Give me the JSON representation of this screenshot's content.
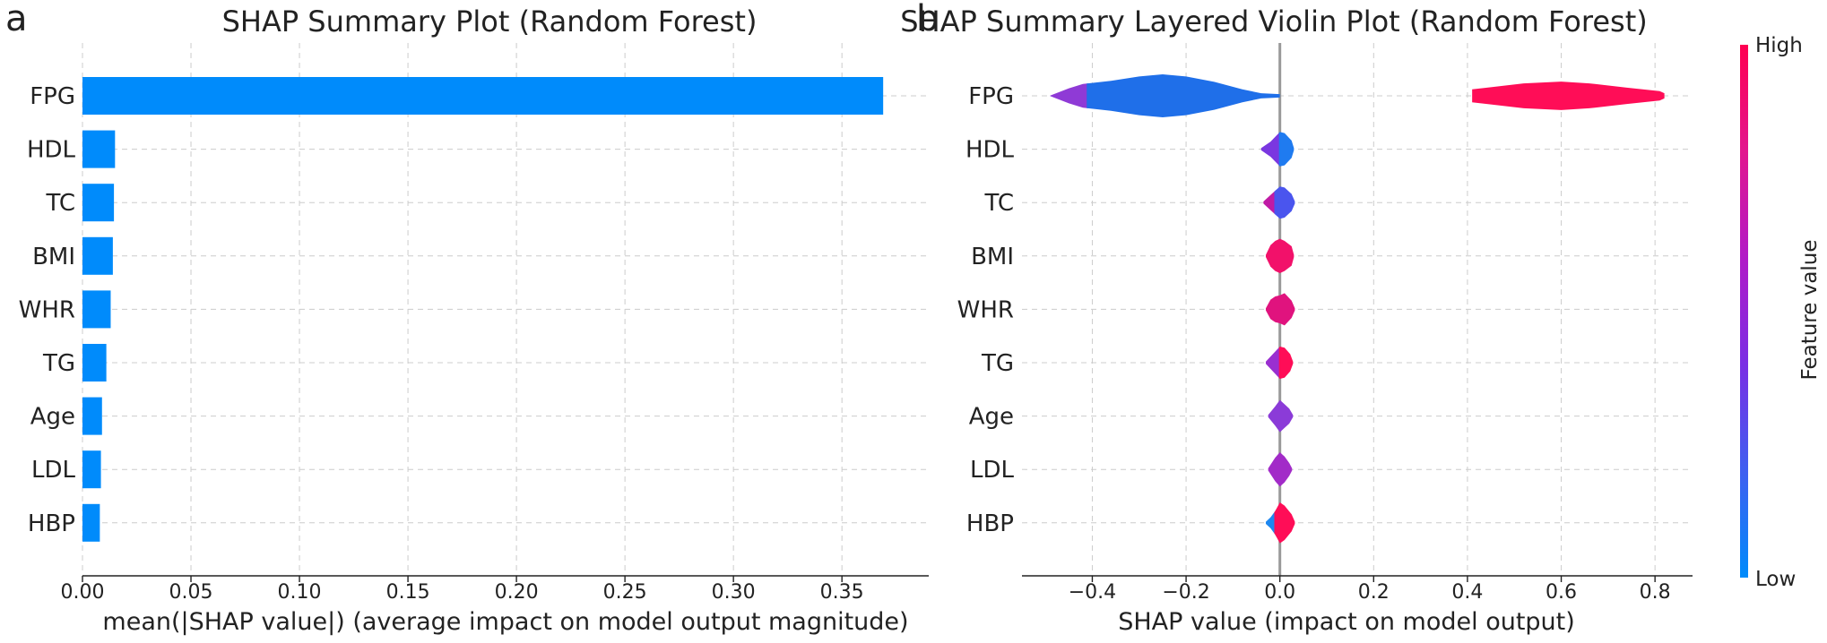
{
  "figure": {
    "panels": [
      {
        "letter": "a",
        "title": "SHAP Summary Plot (Random Forest)"
      },
      {
        "letter": "b",
        "title": "SHAP Summary Layered Violin Plot (Random Forest)"
      }
    ]
  },
  "chart_data": [
    {
      "type": "bar",
      "orientation": "horizontal",
      "panel": "a",
      "title": "SHAP Summary Plot (Random Forest)",
      "categories": [
        "FPG",
        "HDL",
        "TC",
        "BMI",
        "WHR",
        "TG",
        "Age",
        "LDL",
        "HBP"
      ],
      "values": [
        0.369,
        0.015,
        0.0145,
        0.014,
        0.013,
        0.011,
        0.009,
        0.0085,
        0.008
      ],
      "xlabel": "mean(|SHAP value|) (average impact on model output magnitude)",
      "ylabel": "",
      "xlim": [
        0,
        0.39
      ],
      "xticks": [
        0,
        0.05,
        0.1,
        0.15,
        0.2,
        0.25,
        0.3,
        0.35
      ],
      "xtick_labels": [
        "0.00",
        "0.05",
        "0.10",
        "0.15",
        "0.20",
        "0.25",
        "0.30",
        "0.35"
      ],
      "bar_color": "#008bfb",
      "grid": true
    },
    {
      "type": "violin",
      "panel": "b",
      "title": "SHAP Summary Layered Violin Plot (Random Forest)",
      "categories": [
        "FPG",
        "HDL",
        "TC",
        "BMI",
        "WHR",
        "TG",
        "Age",
        "LDL",
        "HBP"
      ],
      "xlabel": "SHAP value (impact on model output)",
      "xlim": [
        -0.55,
        0.88
      ],
      "xticks": [
        -0.4,
        -0.2,
        0,
        0.2,
        0.4,
        0.6,
        0.8
      ],
      "xtick_labels": [
        "−0.4",
        "−0.2",
        "0.0",
        "0.2",
        "0.4",
        "0.6",
        "0.8"
      ],
      "zero_line": 0,
      "violins": [
        {
          "feature": "FPG",
          "shape": [
            [
              -0.49,
              0.01
            ],
            [
              -0.45,
              0.35
            ],
            [
              -0.42,
              0.55
            ],
            [
              -0.36,
              0.7
            ],
            [
              -0.3,
              0.9
            ],
            [
              -0.25,
              1.0
            ],
            [
              -0.2,
              0.9
            ],
            [
              -0.14,
              0.65
            ],
            [
              -0.08,
              0.3
            ],
            [
              -0.04,
              0.12
            ],
            [
              0.0,
              0.08
            ]
          ],
          "segments": [
            {
              "from": -0.49,
              "to": -0.41,
              "color": "#8f3ad6"
            },
            {
              "from": -0.41,
              "to": 0.0,
              "color": "#1f6fe9"
            }
          ]
        },
        {
          "feature": "FPG",
          "shape": [
            [
              0.41,
              0.3
            ],
            [
              0.45,
              0.4
            ],
            [
              0.52,
              0.58
            ],
            [
              0.6,
              0.66
            ],
            [
              0.66,
              0.58
            ],
            [
              0.74,
              0.38
            ],
            [
              0.81,
              0.22
            ],
            [
              0.82,
              0.12
            ]
          ],
          "segments": [
            {
              "from": 0.41,
              "to": 0.82,
              "color": "#ff0d57"
            }
          ]
        },
        {
          "feature": "HDL",
          "shape": [
            [
              -0.04,
              0.05
            ],
            [
              -0.02,
              0.35
            ],
            [
              0.0,
              0.8
            ],
            [
              0.01,
              0.75
            ],
            [
              0.025,
              0.4
            ],
            [
              0.03,
              0.05
            ]
          ],
          "segments": [
            {
              "from": -0.04,
              "to": 0.0,
              "color": "#7a37e0"
            },
            {
              "from": 0.0,
              "to": 0.03,
              "color": "#1f7bf0"
            }
          ]
        },
        {
          "feature": "TC",
          "shape": [
            [
              -0.035,
              0.05
            ],
            [
              -0.02,
              0.35
            ],
            [
              0.0,
              0.75
            ],
            [
              0.01,
              0.7
            ],
            [
              0.025,
              0.4
            ],
            [
              0.032,
              0.05
            ]
          ],
          "segments": [
            {
              "from": -0.035,
              "to": -0.01,
              "color": "#c01aa5"
            },
            {
              "from": -0.01,
              "to": 0.032,
              "color": "#4a55ee"
            }
          ]
        },
        {
          "feature": "BMI",
          "shape": [
            [
              -0.03,
              0.05
            ],
            [
              -0.02,
              0.5
            ],
            [
              -0.01,
              0.7
            ],
            [
              0.0,
              0.8
            ],
            [
              0.01,
              0.7
            ],
            [
              0.025,
              0.45
            ],
            [
              0.03,
              0.05
            ]
          ],
          "segments": [
            {
              "from": -0.03,
              "to": 0.03,
              "color": "#f2116a"
            }
          ]
        },
        {
          "feature": "WHR",
          "shape": [
            [
              -0.03,
              0.05
            ],
            [
              -0.02,
              0.45
            ],
            [
              -0.01,
              0.6
            ],
            [
              0.0,
              0.65
            ],
            [
              0.01,
              0.75
            ],
            [
              0.025,
              0.4
            ],
            [
              0.032,
              0.05
            ]
          ],
          "segments": [
            {
              "from": -0.03,
              "to": 0.032,
              "color": "#e0137e"
            }
          ]
        },
        {
          "feature": "TG",
          "shape": [
            [
              -0.03,
              0.05
            ],
            [
              -0.015,
              0.4
            ],
            [
              0.0,
              0.75
            ],
            [
              0.01,
              0.7
            ],
            [
              0.022,
              0.4
            ],
            [
              0.028,
              0.05
            ]
          ],
          "segments": [
            {
              "from": -0.03,
              "to": 0.0,
              "color": "#9a2fd0"
            },
            {
              "from": 0.0,
              "to": 0.028,
              "color": "#ff0d57"
            }
          ]
        },
        {
          "feature": "Age",
          "shape": [
            [
              -0.025,
              0.05
            ],
            [
              -0.01,
              0.45
            ],
            [
              0.0,
              0.75
            ],
            [
              0.01,
              0.55
            ],
            [
              0.02,
              0.35
            ],
            [
              0.028,
              0.05
            ]
          ],
          "segments": [
            {
              "from": -0.025,
              "to": 0.028,
              "color": "#8b3bd8"
            }
          ]
        },
        {
          "feature": "LDL",
          "shape": [
            [
              -0.025,
              0.05
            ],
            [
              -0.01,
              0.55
            ],
            [
              0.0,
              0.8
            ],
            [
              0.01,
              0.6
            ],
            [
              0.02,
              0.3
            ],
            [
              0.026,
              0.05
            ]
          ],
          "segments": [
            {
              "from": -0.025,
              "to": 0.026,
              "color": "#a22bc8"
            }
          ]
        },
        {
          "feature": "HBP",
          "shape": [
            [
              -0.03,
              0.05
            ],
            [
              -0.02,
              0.25
            ],
            [
              -0.01,
              0.55
            ],
            [
              0.0,
              0.95
            ],
            [
              0.01,
              0.8
            ],
            [
              0.025,
              0.4
            ],
            [
              0.032,
              0.05
            ]
          ],
          "segments": [
            {
              "from": -0.03,
              "to": -0.01,
              "color": "#1e88f0"
            },
            {
              "from": -0.01,
              "to": 0.032,
              "color": "#ff0d57"
            }
          ]
        }
      ],
      "colorbar": {
        "label": "Feature value",
        "high_label": "High",
        "low_label": "Low",
        "colors": [
          "#ff0051",
          "#e2168e",
          "#b11ac7",
          "#7a2ee4",
          "#3f5ff0",
          "#008bfb"
        ]
      }
    }
  ]
}
